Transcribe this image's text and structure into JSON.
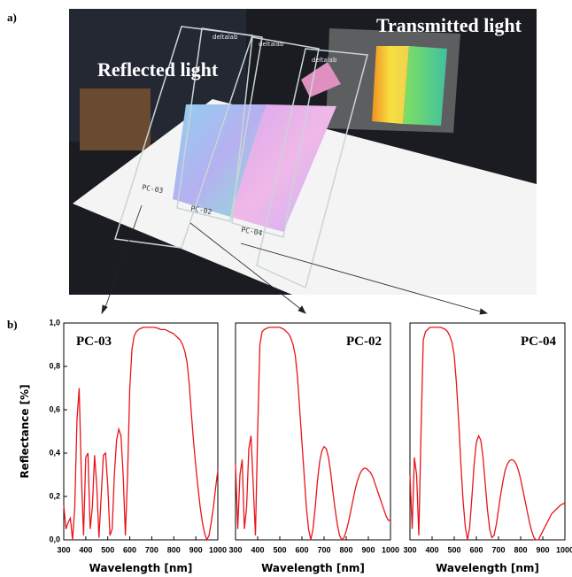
{
  "figure": {
    "panel_a": "a)",
    "panel_b": "b)"
  },
  "photo": {
    "reflected_label": "Reflected light",
    "transmitted_label": "Transmitted light",
    "slide_marks": [
      "PC-03",
      "PC-02",
      "PC-04"
    ],
    "brand": "deltalab"
  },
  "chart_data": [
    {
      "type": "line",
      "title": "PC-03",
      "xlabel": "Wavelength [nm]",
      "ylabel": "Reflectance [%]",
      "color": "#e8141b",
      "xlim": [
        300,
        1000
      ],
      "ylim": [
        0,
        1
      ],
      "xticks": [
        300,
        400,
        500,
        600,
        700,
        800,
        900,
        1000
      ],
      "yticks": [
        {
          "value": 0,
          "label": "0,0"
        },
        {
          "value": 0.2,
          "label": "0,2"
        },
        {
          "value": 0.4,
          "label": "0,4"
        },
        {
          "value": 0.6,
          "label": "0,6"
        },
        {
          "value": 0.8,
          "label": "0,8"
        },
        {
          "value": 1,
          "label": "1,0"
        }
      ],
      "x": [
        300,
        310,
        320,
        330,
        340,
        350,
        360,
        370,
        380,
        390,
        400,
        410,
        420,
        430,
        440,
        450,
        460,
        470,
        480,
        490,
        500,
        510,
        520,
        530,
        540,
        550,
        560,
        570,
        580,
        590,
        600,
        610,
        620,
        630,
        640,
        650,
        660,
        670,
        680,
        690,
        700,
        710,
        720,
        730,
        740,
        750,
        760,
        770,
        780,
        790,
        800,
        810,
        820,
        830,
        840,
        850,
        860,
        870,
        880,
        890,
        900,
        910,
        920,
        930,
        940,
        950,
        960,
        970,
        980,
        990,
        1000
      ],
      "values": [
        0.16,
        0.05,
        0.08,
        0.1,
        0.0,
        0.15,
        0.55,
        0.7,
        0.3,
        0.02,
        0.38,
        0.4,
        0.05,
        0.15,
        0.39,
        0.25,
        0.01,
        0.2,
        0.39,
        0.4,
        0.25,
        0.02,
        0.05,
        0.3,
        0.46,
        0.51,
        0.48,
        0.3,
        0.02,
        0.3,
        0.7,
        0.88,
        0.94,
        0.96,
        0.97,
        0.975,
        0.98,
        0.98,
        0.98,
        0.98,
        0.98,
        0.98,
        0.978,
        0.975,
        0.97,
        0.97,
        0.97,
        0.965,
        0.96,
        0.955,
        0.95,
        0.94,
        0.93,
        0.92,
        0.9,
        0.87,
        0.82,
        0.72,
        0.58,
        0.45,
        0.34,
        0.24,
        0.15,
        0.08,
        0.03,
        0.0,
        0.02,
        0.08,
        0.15,
        0.24,
        0.32
      ]
    },
    {
      "type": "line",
      "title": "PC-02",
      "xlabel": "Wavelength [nm]",
      "color": "#e8141b",
      "xlim": [
        300,
        1000
      ],
      "ylim": [
        0,
        1
      ],
      "xticks": [
        300,
        400,
        500,
        600,
        700,
        800,
        900,
        1000
      ],
      "x": [
        300,
        310,
        320,
        330,
        340,
        350,
        360,
        370,
        380,
        390,
        400,
        410,
        420,
        430,
        440,
        450,
        460,
        470,
        480,
        490,
        500,
        510,
        520,
        530,
        540,
        550,
        560,
        570,
        580,
        590,
        600,
        610,
        620,
        630,
        640,
        650,
        660,
        670,
        680,
        690,
        700,
        710,
        720,
        730,
        740,
        750,
        760,
        770,
        780,
        790,
        800,
        810,
        820,
        830,
        840,
        850,
        860,
        870,
        880,
        890,
        900,
        910,
        920,
        930,
        940,
        950,
        960,
        970,
        980,
        990,
        1000
      ],
      "values": [
        0.35,
        0.05,
        0.3,
        0.37,
        0.05,
        0.15,
        0.42,
        0.48,
        0.25,
        0.02,
        0.5,
        0.9,
        0.96,
        0.97,
        0.975,
        0.98,
        0.98,
        0.98,
        0.98,
        0.98,
        0.98,
        0.975,
        0.97,
        0.96,
        0.95,
        0.93,
        0.9,
        0.85,
        0.75,
        0.6,
        0.45,
        0.3,
        0.15,
        0.05,
        0.0,
        0.05,
        0.15,
        0.27,
        0.36,
        0.41,
        0.43,
        0.42,
        0.38,
        0.31,
        0.22,
        0.14,
        0.07,
        0.02,
        0.0,
        0.01,
        0.04,
        0.08,
        0.13,
        0.18,
        0.23,
        0.27,
        0.3,
        0.32,
        0.33,
        0.33,
        0.32,
        0.31,
        0.29,
        0.26,
        0.23,
        0.2,
        0.17,
        0.14,
        0.11,
        0.09,
        0.09
      ]
    },
    {
      "type": "line",
      "title": "PC-04",
      "xlabel": "Wavelength [nm]",
      "color": "#e8141b",
      "xlim": [
        300,
        1000
      ],
      "ylim": [
        0,
        1
      ],
      "xticks": [
        300,
        400,
        500,
        600,
        700,
        800,
        900,
        1000
      ],
      "x": [
        300,
        310,
        320,
        330,
        340,
        350,
        360,
        370,
        380,
        390,
        400,
        410,
        420,
        430,
        440,
        450,
        460,
        470,
        480,
        490,
        500,
        510,
        520,
        530,
        540,
        550,
        560,
        570,
        580,
        590,
        600,
        610,
        620,
        630,
        640,
        650,
        660,
        670,
        680,
        690,
        700,
        710,
        720,
        730,
        740,
        750,
        760,
        770,
        780,
        790,
        800,
        810,
        820,
        830,
        840,
        850,
        860,
        870,
        880,
        890,
        900,
        910,
        920,
        930,
        940,
        950,
        960,
        970,
        980,
        990,
        1000
      ],
      "values": [
        0.3,
        0.05,
        0.38,
        0.3,
        0.02,
        0.5,
        0.92,
        0.96,
        0.97,
        0.98,
        0.98,
        0.98,
        0.98,
        0.98,
        0.98,
        0.975,
        0.97,
        0.96,
        0.94,
        0.91,
        0.85,
        0.72,
        0.55,
        0.35,
        0.18,
        0.06,
        0.0,
        0.06,
        0.2,
        0.35,
        0.45,
        0.48,
        0.46,
        0.38,
        0.26,
        0.14,
        0.05,
        0.01,
        0.02,
        0.07,
        0.14,
        0.21,
        0.27,
        0.32,
        0.35,
        0.365,
        0.37,
        0.365,
        0.35,
        0.32,
        0.28,
        0.23,
        0.18,
        0.13,
        0.08,
        0.04,
        0.01,
        0.0,
        0.0,
        0.02,
        0.04,
        0.06,
        0.08,
        0.1,
        0.12,
        0.13,
        0.14,
        0.15,
        0.16,
        0.165,
        0.17
      ]
    }
  ]
}
